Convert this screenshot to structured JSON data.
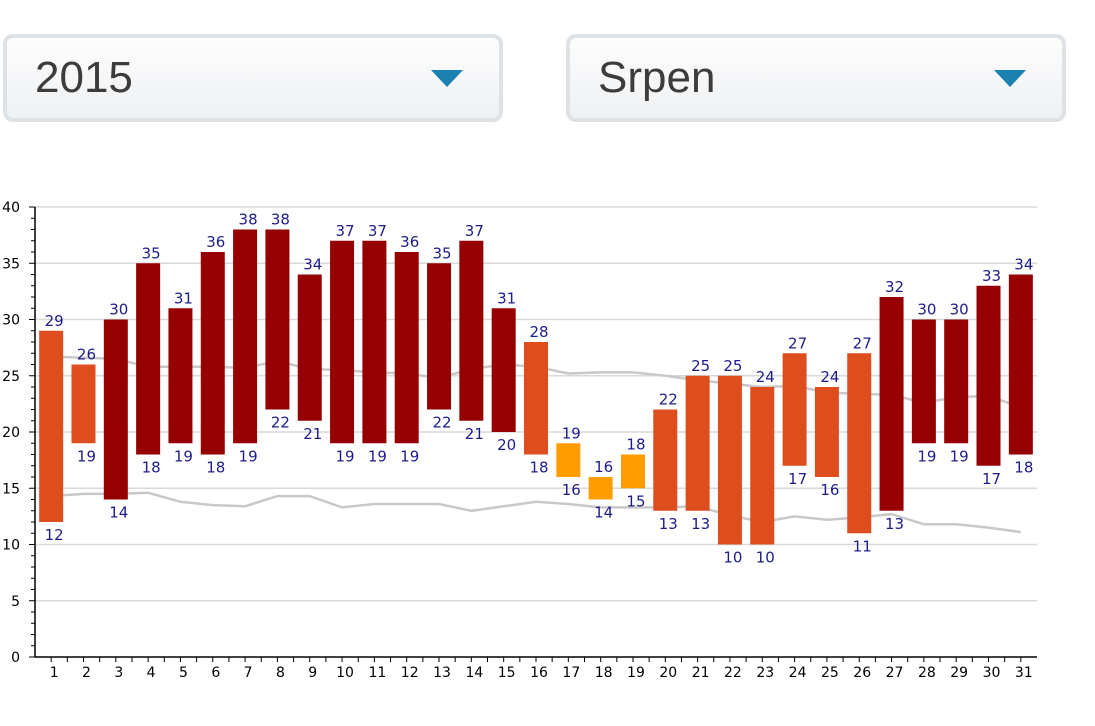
{
  "filters": {
    "year": {
      "value": "2015"
    },
    "month": {
      "value": "Srpen"
    }
  },
  "colors": {
    "hot": "#970000",
    "warm": "#dd4d1e",
    "mild": "#ff9c00",
    "normals_line": "#c8c8c8",
    "label": "#1c1c8c",
    "grid": "#d9d9d9",
    "axis": "#000000"
  },
  "chart_data": {
    "type": "bar",
    "subtype": "floating-range",
    "title": "",
    "xlabel": "",
    "ylabel": "",
    "ylim": [
      0,
      40
    ],
    "yticks": [
      0,
      5,
      10,
      15,
      20,
      25,
      30,
      35,
      40
    ],
    "grid": true,
    "legend": "none",
    "categories": [
      "1",
      "2",
      "3",
      "4",
      "5",
      "6",
      "7",
      "8",
      "9",
      "10",
      "11",
      "12",
      "13",
      "14",
      "15",
      "16",
      "17",
      "18",
      "19",
      "20",
      "21",
      "22",
      "23",
      "24",
      "25",
      "26",
      "27",
      "28",
      "29",
      "30",
      "31"
    ],
    "series": [
      {
        "key": "max",
        "values": [
          29,
          26,
          30,
          35,
          31,
          36,
          38,
          38,
          34,
          37,
          37,
          36,
          35,
          37,
          31,
          28,
          19,
          16,
          18,
          22,
          25,
          25,
          24,
          27,
          24,
          27,
          32,
          30,
          30,
          33,
          34
        ]
      },
      {
        "key": "min",
        "values": [
          12,
          19,
          14,
          18,
          19,
          18,
          19,
          22,
          21,
          19,
          19,
          19,
          22,
          21,
          20,
          18,
          16,
          14,
          15,
          13,
          13,
          10,
          10,
          17,
          16,
          11,
          13,
          19,
          19,
          17,
          18
        ]
      },
      {
        "key": "normal_max",
        "values": [
          26.7,
          26.6,
          26.5,
          25.8,
          25.8,
          25.8,
          25.7,
          26.3,
          25.6,
          25.5,
          25.3,
          25.2,
          24.8,
          25.6,
          26.0,
          25.8,
          25.2,
          25.3,
          25.3,
          25.0,
          24.6,
          24.3,
          24.0,
          24.1,
          23.5,
          23.4,
          23.3,
          22.6,
          23.1,
          23.2,
          22.2
        ]
      },
      {
        "key": "normal_min",
        "values": [
          14.3,
          14.5,
          14.5,
          14.6,
          13.8,
          13.5,
          13.4,
          14.3,
          14.3,
          13.3,
          13.6,
          13.6,
          13.6,
          13.0,
          13.4,
          13.8,
          13.6,
          13.3,
          13.3,
          13.3,
          13.4,
          12.6,
          12.0,
          12.5,
          12.2,
          12.4,
          12.7,
          11.8,
          11.8,
          11.5,
          11.1
        ]
      }
    ]
  }
}
